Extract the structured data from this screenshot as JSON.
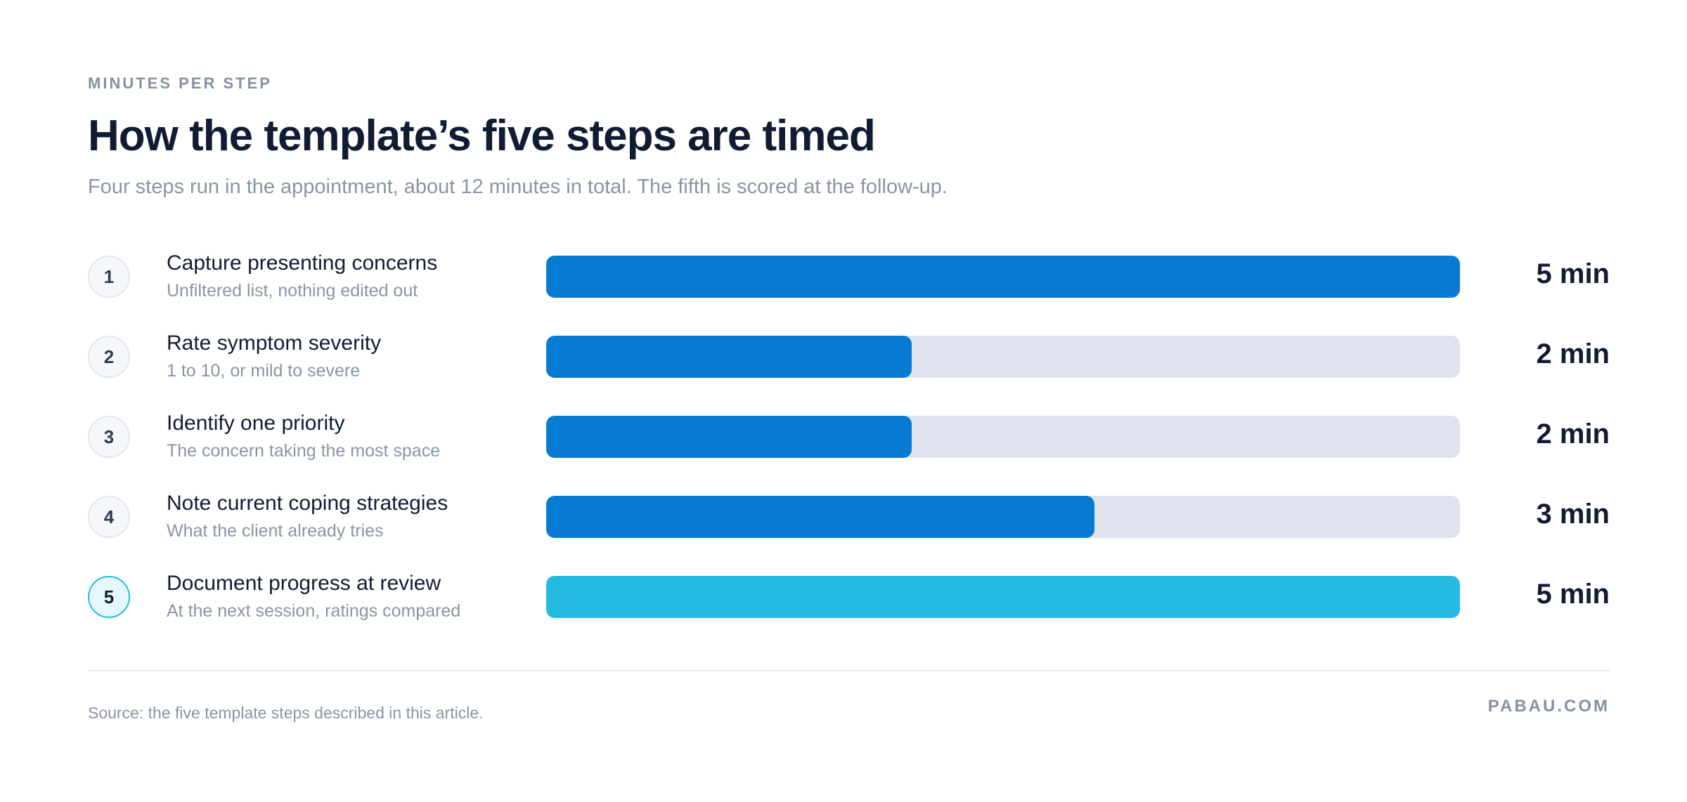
{
  "header": {
    "eyebrow": "MINUTES PER STEP",
    "title": "How the template’s five steps are timed",
    "subtitle": "Four steps run in the appointment, about 12 minutes in total. The fifth is scored at the follow-up."
  },
  "colors": {
    "primary_bar": "#077bd4",
    "review_bar": "#25bbe1",
    "track": "#dee3ed"
  },
  "chart_data": {
    "type": "bar",
    "orientation": "horizontal",
    "categories": [
      "Capture presenting concerns",
      "Rate symptom severity",
      "Identify one priority",
      "Note current coping strategies",
      "Document progress at review"
    ],
    "values": [
      5,
      2,
      2,
      3,
      5
    ],
    "unit": "min",
    "xlim": [
      0,
      5
    ],
    "grid": false,
    "legend": "none",
    "steps": [
      {
        "number": "1",
        "label": "Capture presenting concerns",
        "sub": "Unfiltered list, nothing edited out",
        "value": 5,
        "value_label": "5 min",
        "highlight": false
      },
      {
        "number": "2",
        "label": "Rate symptom severity",
        "sub": "1 to 10, or mild to severe",
        "value": 2,
        "value_label": "2 min",
        "highlight": false
      },
      {
        "number": "3",
        "label": "Identify one priority",
        "sub": "The concern taking the most space",
        "value": 2,
        "value_label": "2 min",
        "highlight": false
      },
      {
        "number": "4",
        "label": "Note current coping strategies",
        "sub": "What the client already tries",
        "value": 3,
        "value_label": "3 min",
        "highlight": false
      },
      {
        "number": "5",
        "label": "Document progress at review",
        "sub": "At the next session, ratings compared",
        "value": 5,
        "value_label": "5 min",
        "highlight": true
      }
    ]
  },
  "footer": {
    "source": "Source: the five template steps described in this article.",
    "brand": "PABAU.COM"
  }
}
